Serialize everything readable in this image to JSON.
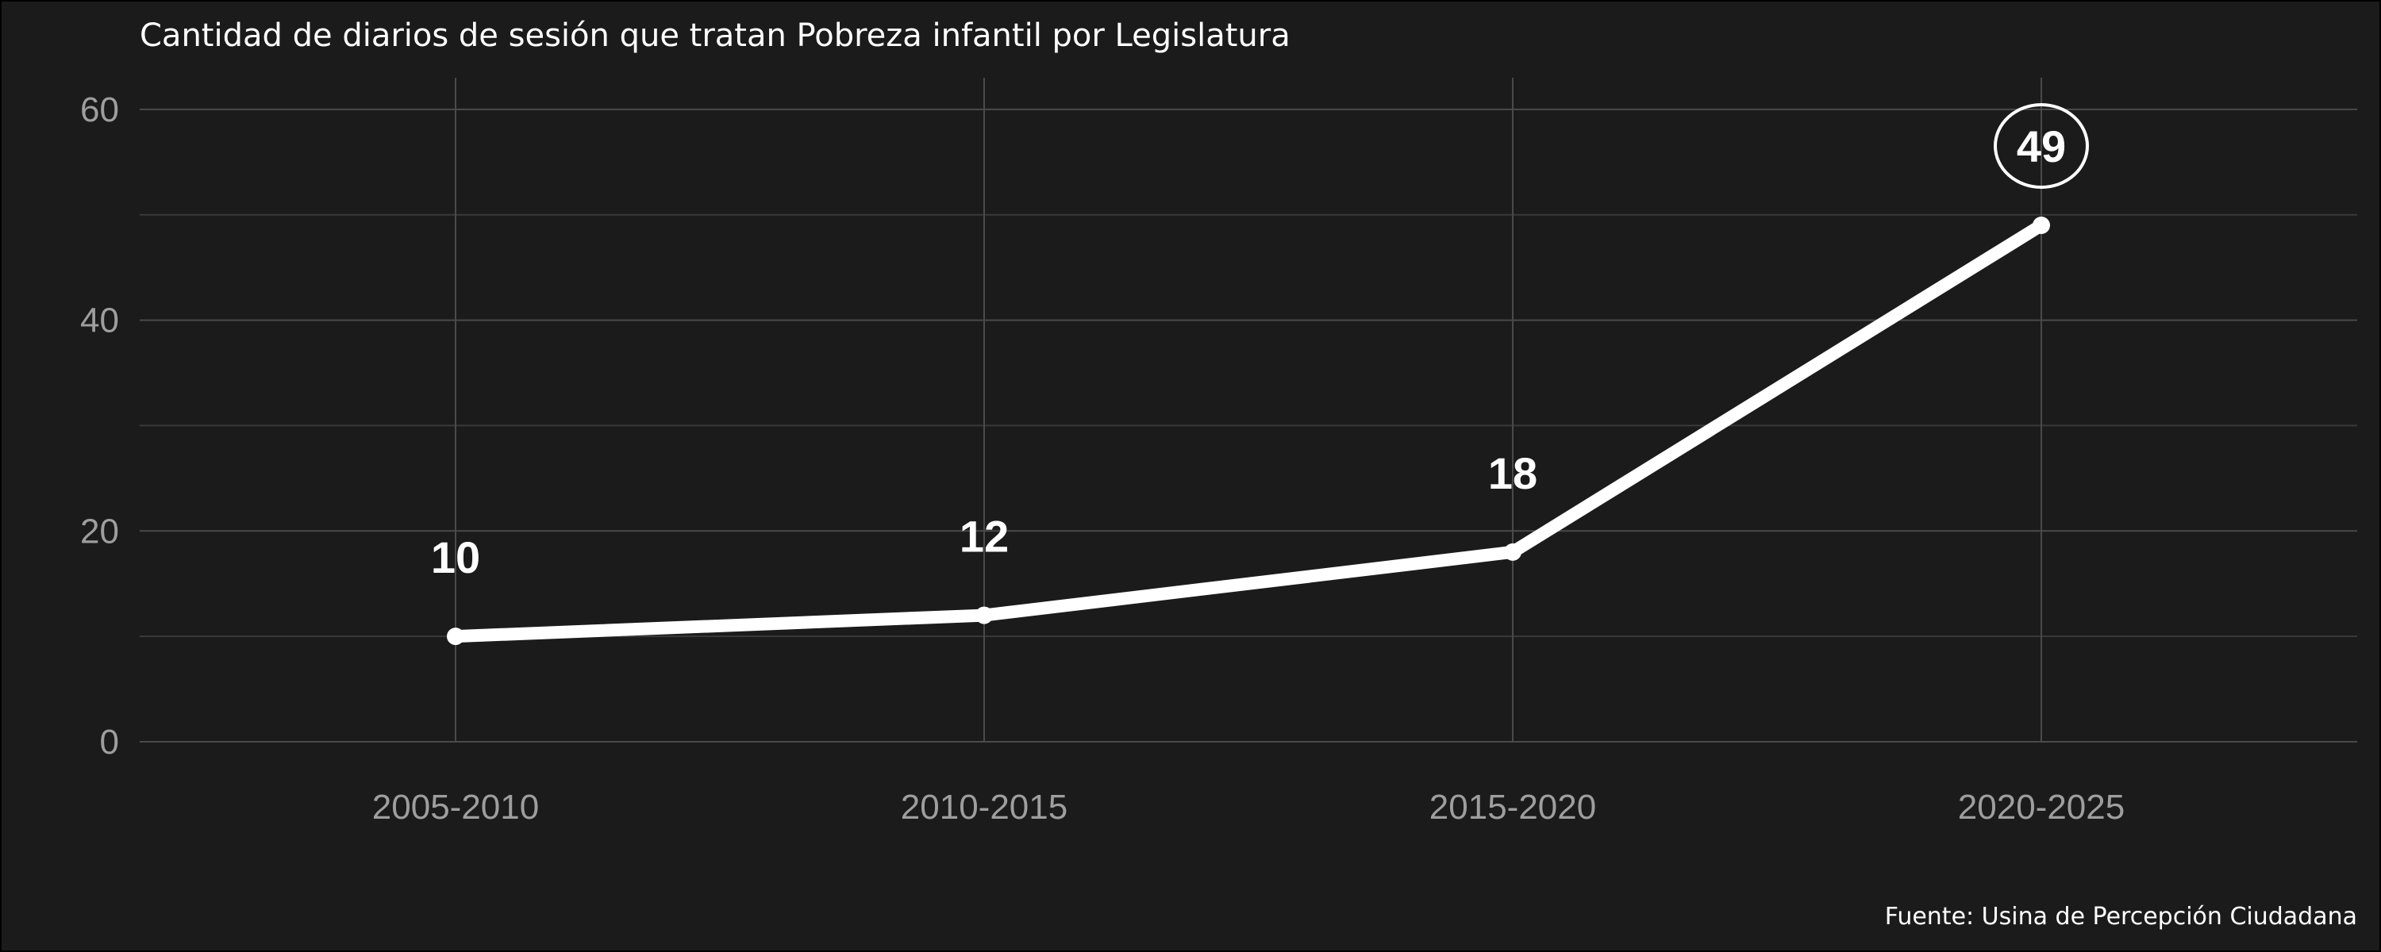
{
  "chart_data": {
    "type": "line",
    "title": "Cantidad de diarios de sesión que tratan Pobreza infantil por Legislatura",
    "caption": "Fuente: Usina de Percepción Ciudadana",
    "categories": [
      "2005-2010",
      "2010-2015",
      "2015-2020",
      "2020-2025"
    ],
    "values": [
      10,
      12,
      18,
      49
    ],
    "data_labels": [
      "10",
      "12",
      "18",
      "49"
    ],
    "highlighted_label_index": 3,
    "ylim": [
      0,
      63
    ],
    "yticks": [
      0,
      20,
      40,
      60
    ],
    "ytick_labels": [
      "0",
      "20",
      "40",
      "60"
    ],
    "grid": true,
    "legend": "none"
  },
  "colors": {
    "background": "#1b1b1b",
    "border": "#000000",
    "line": "#ffffff",
    "grid_major": "#4a4a4a",
    "grid_minor": "#3a3a3a",
    "tick_text": "#9e9e9e",
    "title_text": "#ffffff",
    "label_text": "#ffffff"
  }
}
